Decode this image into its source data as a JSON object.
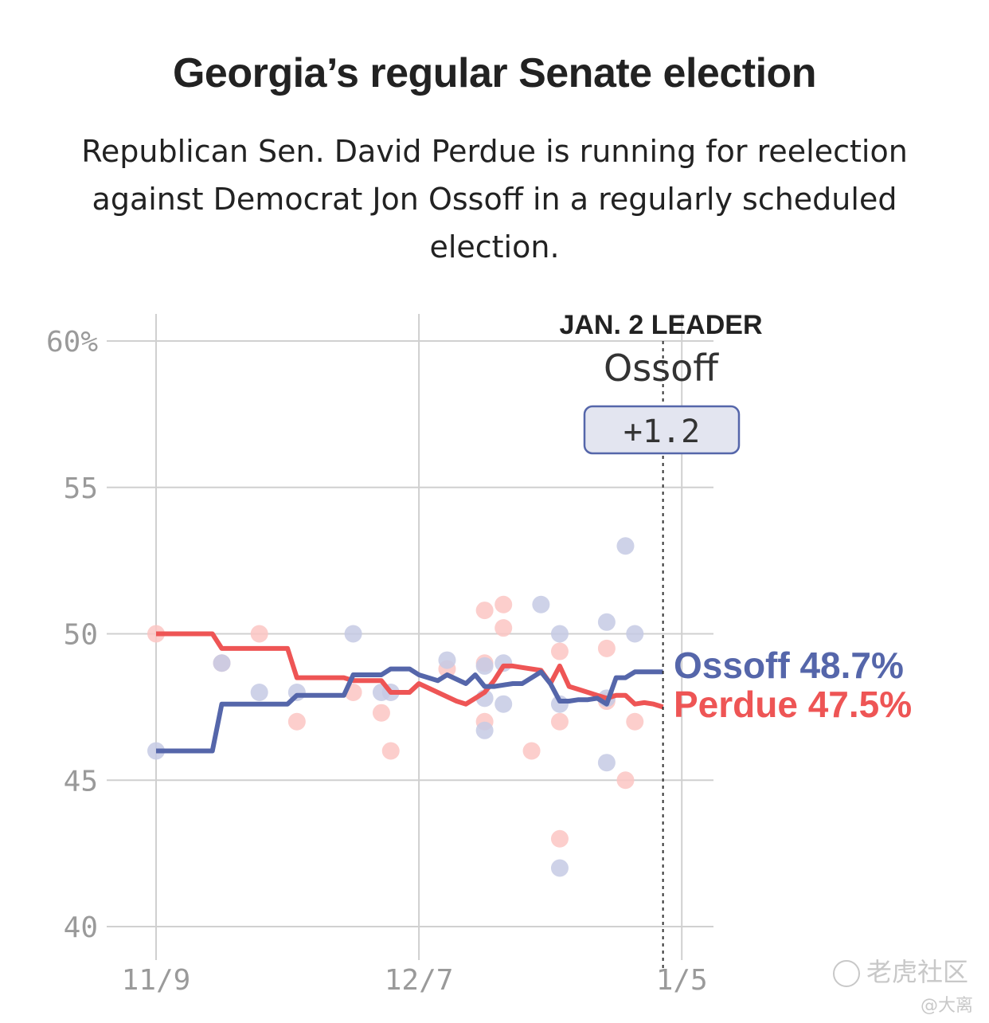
{
  "header": {
    "title": "Georgia’s regular Senate election",
    "subtitle": "Republican Sen. David Perdue is running for reelection against Democrat Jon Ossoff in a regularly scheduled election."
  },
  "leader_box": {
    "kicker": "JAN. 2 LEADER",
    "name": "Ossoff",
    "margin": "+1.2"
  },
  "colors": {
    "ossoff": "#5566aa",
    "perdue": "#ee5555",
    "ossoff_dot": "#c5cae4",
    "perdue_dot": "#fbc5c3",
    "grid": "#d0d0d0",
    "box_fill": "#e3e5f0"
  },
  "watermark": {
    "brand": "老虎社区",
    "user": "@大离"
  },
  "chart_data": {
    "type": "line",
    "title": "Georgia’s regular Senate election",
    "xlabel": "",
    "ylabel": "",
    "x_ticks": [
      "11/9",
      "12/7",
      "1/5"
    ],
    "x_domain_days": [
      0,
      57
    ],
    "y_ticks": [
      40,
      45,
      50,
      55,
      60
    ],
    "y_tick_labels": [
      "40",
      "45",
      "50",
      "55",
      "60%"
    ],
    "ylim": [
      40,
      60
    ],
    "grid": true,
    "leader_day": 54,
    "series": [
      {
        "name": "Ossoff",
        "end_label": "Ossoff 48.7%",
        "x": [
          0,
          6,
          7,
          14,
          15,
          20,
          21,
          24,
          25,
          27,
          28,
          30,
          31,
          32,
          33,
          34,
          35,
          36,
          37,
          38,
          39,
          41,
          42,
          43,
          44,
          45,
          46,
          47,
          48,
          49,
          50,
          51,
          52,
          53,
          54
        ],
        "y": [
          46.0,
          46.0,
          47.6,
          47.6,
          47.9,
          47.9,
          48.6,
          48.6,
          48.8,
          48.8,
          48.6,
          48.4,
          48.6,
          48.45,
          48.3,
          48.6,
          48.2,
          48.2,
          48.25,
          48.3,
          48.3,
          48.7,
          48.3,
          47.7,
          47.7,
          47.75,
          47.75,
          47.8,
          47.6,
          48.5,
          48.5,
          48.7,
          48.7,
          48.7,
          48.7
        ]
      },
      {
        "name": "Perdue",
        "end_label": "Perdue 47.5%",
        "x": [
          0,
          6,
          7,
          14,
          15,
          20,
          21,
          24,
          25,
          27,
          28,
          30,
          32,
          33,
          34,
          35,
          36,
          37,
          38,
          39,
          40,
          41,
          42,
          43,
          44,
          45,
          46,
          47,
          48,
          49,
          50,
          51,
          52,
          53,
          54
        ],
        "y": [
          50.0,
          50.0,
          49.5,
          49.5,
          48.5,
          48.5,
          48.4,
          48.4,
          48.0,
          48.0,
          48.3,
          48.0,
          47.7,
          47.6,
          47.8,
          48.0,
          48.4,
          48.9,
          48.9,
          48.85,
          48.8,
          48.75,
          48.3,
          48.9,
          48.2,
          48.1,
          48.0,
          47.9,
          47.8,
          47.9,
          47.9,
          47.6,
          47.65,
          47.6,
          47.5
        ]
      }
    ],
    "polls": {
      "ossoff": [
        [
          0,
          46.0
        ],
        [
          7,
          49.0
        ],
        [
          11,
          48.0
        ],
        [
          15,
          48.0
        ],
        [
          21,
          50.0
        ],
        [
          24,
          48.0
        ],
        [
          25,
          48.0
        ],
        [
          31,
          49.1
        ],
        [
          35,
          48.9
        ],
        [
          35,
          47.8
        ],
        [
          35,
          46.7
        ],
        [
          37,
          49.0
        ],
        [
          37,
          47.6
        ],
        [
          41,
          51.0
        ],
        [
          43,
          50.0
        ],
        [
          43,
          47.6
        ],
        [
          43,
          42.0
        ],
        [
          48,
          50.4
        ],
        [
          48,
          47.8
        ],
        [
          48,
          45.6
        ],
        [
          50,
          53.0
        ],
        [
          51,
          50.0
        ]
      ],
      "perdue": [
        [
          0,
          50.0
        ],
        [
          7,
          49.0
        ],
        [
          11,
          50.0
        ],
        [
          15,
          47.0
        ],
        [
          21,
          48.0
        ],
        [
          24,
          47.3
        ],
        [
          25,
          46.0
        ],
        [
          31,
          48.8
        ],
        [
          35,
          50.8
        ],
        [
          35,
          49.0
        ],
        [
          35,
          47.0
        ],
        [
          37,
          51.0
        ],
        [
          37,
          50.2
        ],
        [
          40,
          46.0
        ],
        [
          43,
          49.4
        ],
        [
          43,
          47.0
        ],
        [
          43,
          43.0
        ],
        [
          48,
          49.5
        ],
        [
          48,
          47.7
        ],
        [
          50,
          45.0
        ],
        [
          51,
          47.0
        ]
      ]
    }
  }
}
